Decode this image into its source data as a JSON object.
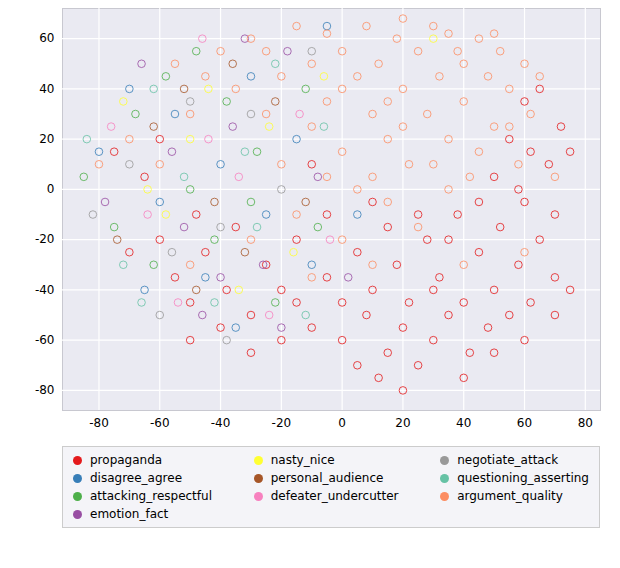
{
  "chart_data": {
    "type": "scatter",
    "marker": "circle",
    "grid": true,
    "legend": "bottom",
    "xlim": [
      -92,
      85
    ],
    "ylim": [
      -88,
      72
    ],
    "xticks": [
      -80,
      -60,
      -40,
      -20,
      0,
      20,
      40,
      60,
      80
    ],
    "yticks": [
      -80,
      -60,
      -40,
      -20,
      0,
      20,
      40,
      60
    ],
    "series": [
      {
        "name": "propaganda",
        "color": "#e41a1c",
        "values": [
          [
            -60,
            -20
          ],
          [
            -55,
            -35
          ],
          [
            -50,
            -45
          ],
          [
            -45,
            -25
          ],
          [
            -40,
            -55
          ],
          [
            -38,
            -40
          ],
          [
            -30,
            -50
          ],
          [
            -25,
            -30
          ],
          [
            -20,
            -60
          ],
          [
            -15,
            -45
          ],
          [
            -10,
            -55
          ],
          [
            -5,
            -35
          ],
          [
            0,
            -60
          ],
          [
            5,
            -70
          ],
          [
            8,
            -50
          ],
          [
            10,
            -40
          ],
          [
            12,
            -75
          ],
          [
            15,
            -65
          ],
          [
            18,
            -30
          ],
          [
            20,
            -55
          ],
          [
            22,
            -45
          ],
          [
            25,
            -70
          ],
          [
            28,
            -20
          ],
          [
            30,
            -60
          ],
          [
            32,
            -35
          ],
          [
            35,
            -50
          ],
          [
            38,
            -10
          ],
          [
            40,
            -45
          ],
          [
            42,
            -65
          ],
          [
            45,
            -25
          ],
          [
            48,
            -55
          ],
          [
            50,
            -40
          ],
          [
            52,
            -15
          ],
          [
            55,
            -50
          ],
          [
            58,
            -30
          ],
          [
            60,
            -5
          ],
          [
            62,
            -45
          ],
          [
            65,
            -20
          ],
          [
            68,
            10
          ],
          [
            70,
            -35
          ],
          [
            72,
            25
          ],
          [
            55,
            20
          ],
          [
            60,
            35
          ],
          [
            65,
            40
          ],
          [
            75,
            15
          ],
          [
            58,
            0
          ],
          [
            70,
            -10
          ],
          [
            45,
            -5
          ],
          [
            35,
            -20
          ],
          [
            25,
            -10
          ],
          [
            15,
            -15
          ],
          [
            5,
            -25
          ],
          [
            -5,
            -10
          ],
          [
            -15,
            -20
          ],
          [
            -35,
            -15
          ],
          [
            -48,
            -10
          ],
          [
            -65,
            5
          ],
          [
            -70,
            -25
          ],
          [
            -60,
            20
          ],
          [
            -75,
            15
          ],
          [
            -50,
            -60
          ],
          [
            -30,
            -65
          ],
          [
            -20,
            -40
          ],
          [
            0,
            -45
          ],
          [
            20,
            -80
          ],
          [
            40,
            -75
          ],
          [
            50,
            -65
          ],
          [
            30,
            -40
          ],
          [
            10,
            -5
          ],
          [
            -10,
            10
          ],
          [
            60,
            -60
          ],
          [
            70,
            -50
          ],
          [
            75,
            -40
          ],
          [
            50,
            5
          ],
          [
            62,
            15
          ]
        ]
      },
      {
        "name": "disagree_agree",
        "color": "#377eb8",
        "values": [
          [
            -80,
            15
          ],
          [
            -70,
            40
          ],
          [
            -60,
            -5
          ],
          [
            -55,
            30
          ],
          [
            -45,
            -35
          ],
          [
            -40,
            10
          ],
          [
            -30,
            45
          ],
          [
            -25,
            -10
          ],
          [
            -15,
            20
          ],
          [
            -5,
            65
          ],
          [
            -10,
            -30
          ],
          [
            -35,
            -55
          ],
          [
            5,
            -10
          ],
          [
            -65,
            -40
          ]
        ]
      },
      {
        "name": "attacking_respectful",
        "color": "#4daf4a",
        "values": [
          [
            -85,
            5
          ],
          [
            -75,
            -15
          ],
          [
            -68,
            30
          ],
          [
            -58,
            45
          ],
          [
            -50,
            0
          ],
          [
            -42,
            -20
          ],
          [
            -38,
            35
          ],
          [
            -28,
            15
          ],
          [
            -22,
            -45
          ],
          [
            -12,
            40
          ],
          [
            -48,
            55
          ],
          [
            -62,
            -30
          ],
          [
            -8,
            -15
          ],
          [
            -30,
            -5
          ]
        ]
      },
      {
        "name": "emotion_fact",
        "color": "#984ea3",
        "values": [
          [
            -78,
            -5
          ],
          [
            -66,
            50
          ],
          [
            -56,
            15
          ],
          [
            -46,
            -50
          ],
          [
            -36,
            25
          ],
          [
            -26,
            -30
          ],
          [
            -18,
            55
          ],
          [
            -8,
            5
          ],
          [
            -52,
            -15
          ],
          [
            -40,
            -35
          ],
          [
            -20,
            -55
          ],
          [
            -32,
            60
          ],
          [
            2,
            -35
          ]
        ]
      },
      {
        "name": "nasty_nice",
        "color": "#ffff33",
        "values": [
          [
            -72,
            35
          ],
          [
            -58,
            -10
          ],
          [
            -44,
            40
          ],
          [
            -34,
            -40
          ],
          [
            -24,
            25
          ],
          [
            -16,
            -25
          ],
          [
            -6,
            45
          ],
          [
            -64,
            0
          ],
          [
            30,
            60
          ],
          [
            -50,
            20
          ]
        ]
      },
      {
        "name": "personal_audience",
        "color": "#a65628",
        "values": [
          [
            -74,
            -20
          ],
          [
            -62,
            25
          ],
          [
            -52,
            40
          ],
          [
            -42,
            -5
          ],
          [
            -32,
            -25
          ],
          [
            -22,
            35
          ],
          [
            -12,
            -5
          ],
          [
            -48,
            -40
          ],
          [
            -36,
            50
          ]
        ]
      },
      {
        "name": "defeater_undercutter",
        "color": "#f781bf",
        "values": [
          [
            -76,
            25
          ],
          [
            -64,
            -10
          ],
          [
            -54,
            -45
          ],
          [
            -44,
            20
          ],
          [
            -34,
            5
          ],
          [
            -24,
            -50
          ],
          [
            -14,
            30
          ],
          [
            -46,
            60
          ],
          [
            -4,
            -20
          ]
        ]
      },
      {
        "name": "negotiate_attack",
        "color": "#999999",
        "values": [
          [
            -82,
            -10
          ],
          [
            -70,
            10
          ],
          [
            -60,
            -50
          ],
          [
            -50,
            35
          ],
          [
            -40,
            -15
          ],
          [
            -30,
            30
          ],
          [
            -20,
            0
          ],
          [
            -10,
            55
          ],
          [
            -56,
            -25
          ],
          [
            -38,
            -60
          ]
        ]
      },
      {
        "name": "questioning_asserting",
        "color": "#66c2a5",
        "values": [
          [
            -84,
            20
          ],
          [
            -72,
            -30
          ],
          [
            -62,
            40
          ],
          [
            -52,
            5
          ],
          [
            -42,
            -45
          ],
          [
            -32,
            15
          ],
          [
            -22,
            50
          ],
          [
            -12,
            -50
          ],
          [
            -6,
            25
          ],
          [
            -66,
            -45
          ],
          [
            -28,
            -15
          ]
        ]
      },
      {
        "name": "argument_quality",
        "color": "#fc8d62",
        "values": [
          [
            -40,
            55
          ],
          [
            -30,
            60
          ],
          [
            -20,
            45
          ],
          [
            -15,
            65
          ],
          [
            -10,
            50
          ],
          [
            -5,
            35
          ],
          [
            0,
            55
          ],
          [
            5,
            45
          ],
          [
            8,
            65
          ],
          [
            10,
            30
          ],
          [
            12,
            50
          ],
          [
            15,
            20
          ],
          [
            18,
            60
          ],
          [
            20,
            40
          ],
          [
            22,
            10
          ],
          [
            25,
            55
          ],
          [
            28,
            30
          ],
          [
            30,
            65
          ],
          [
            32,
            45
          ],
          [
            35,
            20
          ],
          [
            38,
            55
          ],
          [
            40,
            35
          ],
          [
            42,
            5
          ],
          [
            45,
            60
          ],
          [
            48,
            45
          ],
          [
            50,
            25
          ],
          [
            52,
            55
          ],
          [
            55,
            40
          ],
          [
            58,
            10
          ],
          [
            60,
            50
          ],
          [
            62,
            30
          ],
          [
            65,
            45
          ],
          [
            15,
            -5
          ],
          [
            25,
            -15
          ],
          [
            35,
            0
          ],
          [
            0,
            15
          ],
          [
            -5,
            5
          ],
          [
            5,
            0
          ],
          [
            -10,
            25
          ],
          [
            -25,
            30
          ],
          [
            -35,
            40
          ],
          [
            -45,
            45
          ],
          [
            -55,
            50
          ],
          [
            -50,
            30
          ],
          [
            -60,
            10
          ],
          [
            -70,
            20
          ],
          [
            -80,
            10
          ],
          [
            -20,
            10
          ],
          [
            10,
            5
          ],
          [
            20,
            25
          ],
          [
            30,
            10
          ],
          [
            40,
            50
          ],
          [
            45,
            15
          ],
          [
            55,
            25
          ],
          [
            -15,
            -10
          ],
          [
            0,
            -20
          ],
          [
            10,
            -30
          ],
          [
            -30,
            -20
          ],
          [
            -50,
            -30
          ],
          [
            20,
            68
          ],
          [
            -5,
            62
          ],
          [
            35,
            62
          ],
          [
            50,
            62
          ],
          [
            -25,
            55
          ],
          [
            0,
            40
          ],
          [
            15,
            35
          ],
          [
            -10,
            -35
          ],
          [
            40,
            -30
          ],
          [
            60,
            -25
          ],
          [
            70,
            5
          ]
        ]
      }
    ]
  }
}
